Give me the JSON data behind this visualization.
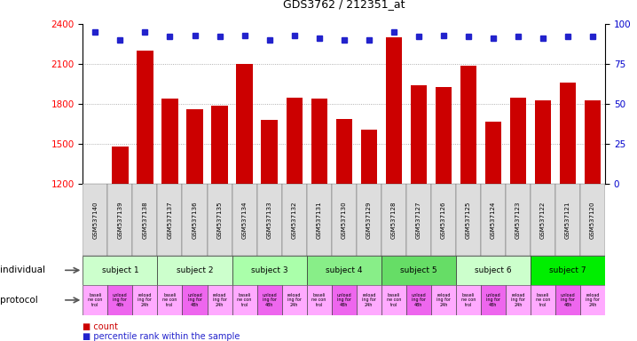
{
  "title": "GDS3762 / 212351_at",
  "samples": [
    "GSM537140",
    "GSM537139",
    "GSM537138",
    "GSM537137",
    "GSM537136",
    "GSM537135",
    "GSM537134",
    "GSM537133",
    "GSM537132",
    "GSM537131",
    "GSM537130",
    "GSM537129",
    "GSM537128",
    "GSM537127",
    "GSM537126",
    "GSM537125",
    "GSM537124",
    "GSM537123",
    "GSM537122",
    "GSM537121",
    "GSM537120"
  ],
  "counts": [
    1200,
    1480,
    2200,
    1840,
    1760,
    1790,
    2100,
    1680,
    1850,
    1840,
    1690,
    1610,
    2300,
    1940,
    1930,
    2090,
    1670,
    1850,
    1830,
    1960,
    1830
  ],
  "percentile_ranks": [
    95,
    90,
    95,
    92,
    93,
    92,
    93,
    90,
    93,
    91,
    90,
    90,
    95,
    92,
    93,
    92,
    91,
    92,
    91,
    92,
    92
  ],
  "ylim_left": [
    1200,
    2400
  ],
  "ylim_right": [
    0,
    100
  ],
  "yticks_left": [
    1200,
    1500,
    1800,
    2100,
    2400
  ],
  "yticks_right": [
    0,
    25,
    50,
    75,
    100
  ],
  "bar_color": "#cc0000",
  "dot_color": "#2222cc",
  "grid_color": "#999999",
  "subjects": [
    {
      "label": "subject 1",
      "start": 0,
      "end": 3,
      "color": "#ccffcc"
    },
    {
      "label": "subject 2",
      "start": 3,
      "end": 6,
      "color": "#ccffcc"
    },
    {
      "label": "subject 3",
      "start": 6,
      "end": 9,
      "color": "#aaffaa"
    },
    {
      "label": "subject 4",
      "start": 9,
      "end": 12,
      "color": "#88ee88"
    },
    {
      "label": "subject 5",
      "start": 12,
      "end": 15,
      "color": "#66dd66"
    },
    {
      "label": "subject 6",
      "start": 15,
      "end": 18,
      "color": "#ccffcc"
    },
    {
      "label": "subject 7",
      "start": 18,
      "end": 21,
      "color": "#00ee00"
    }
  ],
  "proto_labels": [
    "baseline\nne con\ntrol",
    "unload\ning for\n48h",
    "reload\ning for\n24h"
  ],
  "proto_colors": [
    "#ffaaff",
    "#ee66ee",
    "#ffaaff"
  ],
  "bg_color": "#ffffff",
  "sample_bg": "#dddddd",
  "title_fontsize": 9,
  "tick_fontsize": 6,
  "right_tick_color": "#0000cc"
}
